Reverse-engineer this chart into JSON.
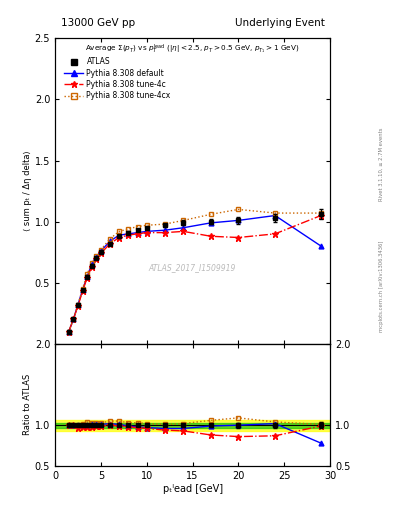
{
  "title_left": "13000 GeV pp",
  "title_right": "Underlying Event",
  "watermark": "ATLAS_2017_I1509919",
  "right_label1": "Rivet 3.1.10, ≥ 2.7M events",
  "right_label2": "mcplots.cern.ch [arXiv:1306.3436]",
  "ylabel_main": "⟨ sum pₜ / Δη delta⟩",
  "ylabel_ratio": "Ratio to ATLAS",
  "xlabel": "pₜˡead [GeV]",
  "xlim": [
    0,
    30
  ],
  "ylim_main": [
    0,
    2.5
  ],
  "ylim_ratio": [
    0.5,
    2.0
  ],
  "yticks_main": [
    0.5,
    1.0,
    1.5,
    2.0,
    2.5
  ],
  "yticks_ratio": [
    0.5,
    1.0,
    2.0
  ],
  "atlas_x": [
    1.5,
    2.0,
    2.5,
    3.0,
    3.5,
    4.0,
    4.5,
    5.0,
    6.0,
    7.0,
    8.0,
    9.0,
    10.0,
    12.0,
    14.0,
    17.0,
    20.0,
    24.0,
    29.0
  ],
  "atlas_y": [
    0.1,
    0.2,
    0.32,
    0.44,
    0.55,
    0.64,
    0.7,
    0.75,
    0.82,
    0.88,
    0.91,
    0.93,
    0.95,
    0.97,
    0.99,
    1.0,
    1.01,
    1.03,
    1.06
  ],
  "atlas_yerr": [
    0.01,
    0.01,
    0.01,
    0.01,
    0.01,
    0.01,
    0.01,
    0.01,
    0.01,
    0.01,
    0.01,
    0.01,
    0.01,
    0.01,
    0.02,
    0.02,
    0.03,
    0.03,
    0.04
  ],
  "py_default_x": [
    1.5,
    2.0,
    2.5,
    3.0,
    3.5,
    4.0,
    4.5,
    5.0,
    6.0,
    7.0,
    8.0,
    9.0,
    10.0,
    12.0,
    14.0,
    17.0,
    20.0,
    24.0,
    29.0
  ],
  "py_default_y": [
    0.1,
    0.2,
    0.32,
    0.44,
    0.55,
    0.65,
    0.71,
    0.76,
    0.84,
    0.89,
    0.9,
    0.91,
    0.92,
    0.93,
    0.95,
    0.99,
    1.01,
    1.05,
    0.8
  ],
  "py_default_color": "#0000ff",
  "py_4c_x": [
    1.5,
    2.0,
    2.5,
    3.0,
    3.5,
    4.0,
    4.5,
    5.0,
    6.0,
    7.0,
    8.0,
    9.0,
    10.0,
    12.0,
    14.0,
    17.0,
    20.0,
    24.0,
    29.0
  ],
  "py_4c_y": [
    0.1,
    0.2,
    0.31,
    0.43,
    0.54,
    0.63,
    0.69,
    0.74,
    0.82,
    0.87,
    0.89,
    0.9,
    0.91,
    0.91,
    0.92,
    0.88,
    0.87,
    0.9,
    1.05
  ],
  "py_4c_color": "#ff0000",
  "py_4cx_x": [
    1.5,
    2.0,
    2.5,
    3.0,
    3.5,
    4.0,
    4.5,
    5.0,
    6.0,
    7.0,
    8.0,
    9.0,
    10.0,
    12.0,
    14.0,
    17.0,
    20.0,
    24.0,
    29.0
  ],
  "py_4cx_y": [
    0.1,
    0.2,
    0.32,
    0.45,
    0.57,
    0.66,
    0.72,
    0.77,
    0.86,
    0.92,
    0.94,
    0.96,
    0.97,
    0.98,
    1.01,
    1.06,
    1.1,
    1.07,
    1.07
  ],
  "py_4cx_color": "#cc6600",
  "ratio_default_y": [
    1.0,
    1.0,
    1.0,
    1.0,
    1.0,
    1.02,
    1.01,
    1.01,
    1.02,
    1.01,
    0.99,
    0.98,
    0.97,
    0.96,
    0.96,
    0.99,
    1.0,
    1.02,
    0.78
  ],
  "ratio_4c_y": [
    1.0,
    1.0,
    0.97,
    0.98,
    0.98,
    0.98,
    0.99,
    0.99,
    1.0,
    0.99,
    0.98,
    0.97,
    0.96,
    0.94,
    0.93,
    0.88,
    0.86,
    0.87,
    0.99
  ],
  "ratio_4cx_y": [
    1.0,
    1.0,
    1.0,
    1.02,
    1.04,
    1.03,
    1.03,
    1.03,
    1.05,
    1.05,
    1.03,
    1.03,
    1.02,
    1.01,
    1.02,
    1.06,
    1.09,
    1.04,
    1.01
  ],
  "band_green_lo": 0.97,
  "band_green_hi": 1.03,
  "band_yellow_lo": 0.93,
  "band_yellow_hi": 1.07
}
